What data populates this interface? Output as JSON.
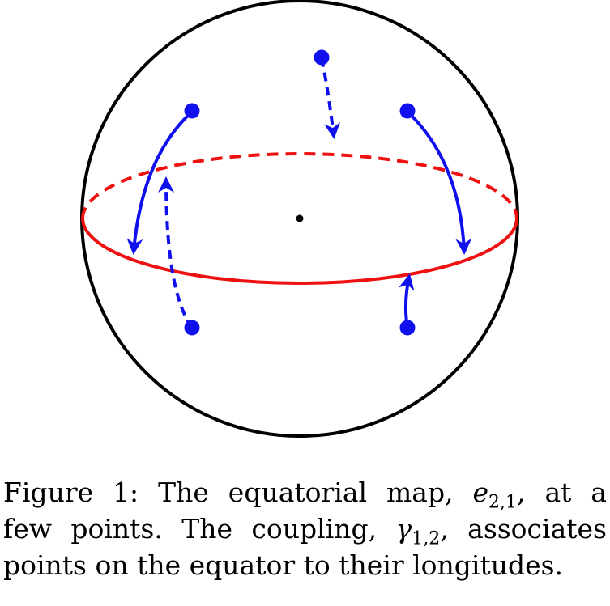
{
  "colors": {
    "sphere": "#000000",
    "equator": "#ee1111",
    "points": "#1010ee"
  },
  "caption": {
    "label": "Figure 1:",
    "line1_pre": "The equatorial map,",
    "map_symbol": "e",
    "map_subscript": "2,1",
    "line1_post": ", at a",
    "line2_pre": "few points.  The coupling,",
    "coupling_symbol": "γ",
    "coupling_subscript": "1,2",
    "line2_post": ", associates",
    "line3": "points on the equator to their longitudes."
  }
}
